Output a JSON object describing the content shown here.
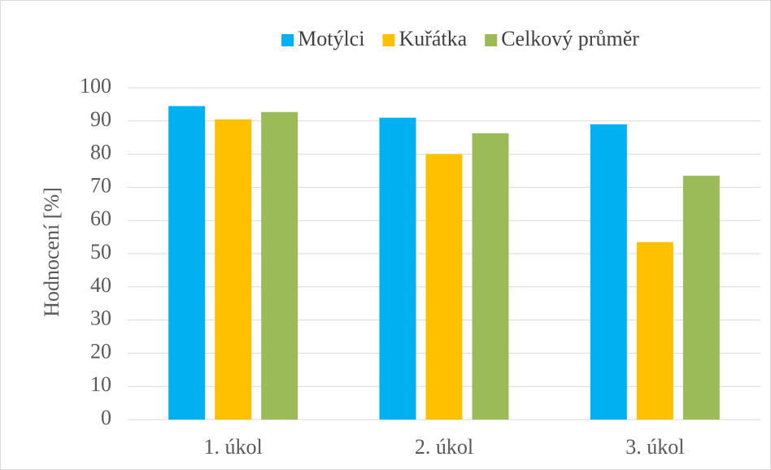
{
  "chart_data": {
    "type": "bar",
    "y_label": "Hodnocení [%]",
    "categories": [
      "1. úkol",
      "2. úkol",
      "3. úkol"
    ],
    "series": [
      {
        "name": "Motýlci",
        "color": "#00b0f0",
        "values": [
          94.5,
          91,
          89
        ]
      },
      {
        "name": "Kuřátka",
        "color": "#ffc000",
        "values": [
          90.5,
          80,
          53.5
        ]
      },
      {
        "name": "Celkový průměr",
        "color": "#9bbb59",
        "values": [
          92.7,
          86.3,
          73.5
        ]
      }
    ],
    "ylim": [
      0,
      100
    ],
    "yticks": [
      0,
      10,
      20,
      30,
      40,
      50,
      60,
      70,
      80,
      90,
      100
    ],
    "grid": true,
    "legend": "top"
  }
}
